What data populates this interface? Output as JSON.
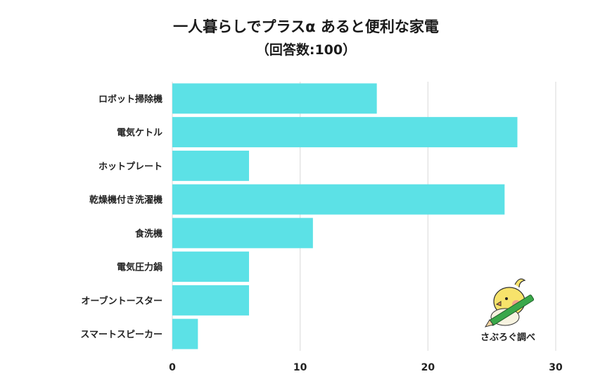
{
  "title_line1": "一人暮らしでプラスα あると便利な家電",
  "title_line2": "（回答数:100）",
  "logo_text": "さぶろぐ調べ",
  "colors": {
    "bar": "#5ce1e6",
    "grid": "#d9d9d9"
  },
  "chart_data": {
    "type": "bar",
    "orientation": "horizontal",
    "categories": [
      "ロボット掃除機",
      "電気ケトル",
      "ホットプレート",
      "乾燥機付き洗濯機",
      "食洗機",
      "電気圧力鍋",
      "オーブントースター",
      "スマートスピーカー"
    ],
    "values": [
      16,
      27,
      6,
      26,
      11,
      6,
      6,
      2
    ],
    "xlim": [
      0,
      30
    ],
    "xticks": [
      0,
      10,
      20,
      30
    ],
    "grid": true
  }
}
